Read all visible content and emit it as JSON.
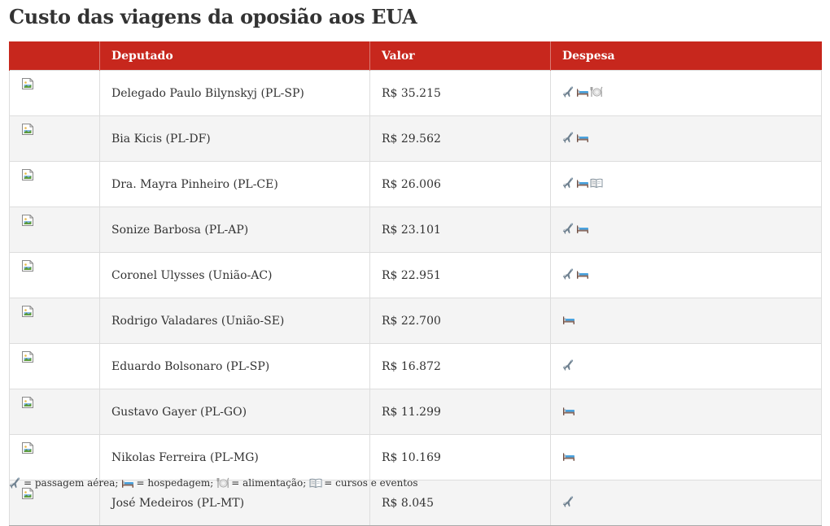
{
  "title": "Custo das viagens da oposião aos EUA",
  "table": {
    "headers": [
      "",
      "Deputado",
      "Valor",
      "Despesa"
    ],
    "rows": [
      {
        "deputado": "Delegado Paulo Bilynskyj (PL-SP)",
        "valor": "R$ 35.215",
        "despesa": [
          "plane-icon",
          "bed-icon",
          "plate-icon"
        ]
      },
      {
        "deputado": "Bia Kicis (PL-DF)",
        "valor": "R$ 29.562",
        "despesa": [
          "plane-icon",
          "bed-icon"
        ]
      },
      {
        "deputado": "Dra. Mayra Pinheiro (PL-CE)",
        "valor": "R$ 26.006",
        "despesa": [
          "plane-icon",
          "bed-icon",
          "book-icon"
        ]
      },
      {
        "deputado": "Sonize Barbosa (PL-AP)",
        "valor": "R$ 23.101",
        "despesa": [
          "plane-icon",
          "bed-icon"
        ]
      },
      {
        "deputado": "Coronel Ulysses (União-AC)",
        "valor": "R$ 22.951",
        "despesa": [
          "plane-icon",
          "bed-icon"
        ]
      },
      {
        "deputado": "Rodrigo Valadares (União-SE)",
        "valor": "R$ 22.700",
        "despesa": [
          "bed-icon"
        ]
      },
      {
        "deputado": "Eduardo Bolsonaro (PL-SP)",
        "valor": "R$ 16.872",
        "despesa": [
          "plane-icon"
        ]
      },
      {
        "deputado": "Gustavo Gayer (PL-GO)",
        "valor": "R$ 11.299",
        "despesa": [
          "bed-icon"
        ]
      },
      {
        "deputado": "Nikolas Ferreira (PL-MG)",
        "valor": "R$ 10.169",
        "despesa": [
          "bed-icon"
        ]
      },
      {
        "deputado": "José Medeiros (PL-MT)",
        "valor": "R$ 8.045",
        "despesa": [
          "plane-icon"
        ]
      }
    ]
  },
  "legend": [
    {
      "icon": "plane-icon",
      "text": "= passagem aérea;"
    },
    {
      "icon": "bed-icon",
      "text": "= hospedagem;"
    },
    {
      "icon": "plate-icon",
      "text": "= alimentação;"
    },
    {
      "icon": "book-icon",
      "text": "= cursos e eventos"
    }
  ],
  "colors": {
    "header_bg": "#c7271d",
    "header_text": "#ffffff",
    "row_alt_bg": "#f4f4f4"
  }
}
